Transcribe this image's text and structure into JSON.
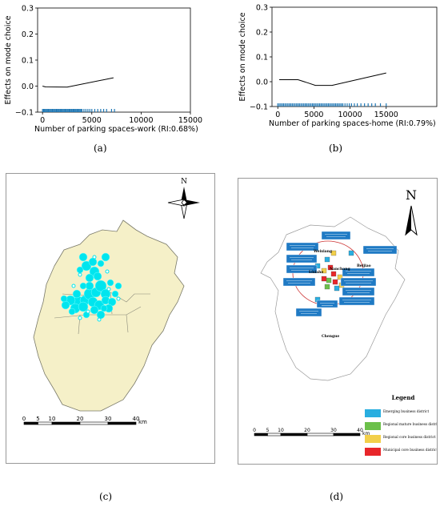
{
  "captions": [
    "(a)",
    "(b)",
    "(c)",
    "(d)"
  ],
  "chart_data": [
    {
      "type": "line",
      "panel": "a",
      "ylabel": "Effects on mode choice",
      "xlabel": "Number of parking spaces-work (RI:0.68%)",
      "xlim": [
        -500,
        15000
      ],
      "ylim": [
        -0.1,
        0.3
      ],
      "xticks": [
        0,
        5000,
        10000,
        15000
      ],
      "yticks": [
        -0.1,
        0.0,
        0.1,
        0.2,
        0.3
      ],
      "xtick_labels": [
        "0",
        "5000",
        "10000",
        "15000"
      ],
      "ytick_labels": [
        "−0.1",
        "0.0",
        "0.1",
        "0.2",
        "0.3"
      ],
      "line": {
        "x": [
          0,
          300,
          2500,
          7200
        ],
        "y": [
          0.0,
          -0.003,
          -0.004,
          0.032
        ]
      },
      "rug": [
        0,
        100,
        200,
        300,
        400,
        500,
        600,
        700,
        800,
        900,
        1000,
        1100,
        1200,
        1300,
        1400,
        1500,
        1600,
        1700,
        1800,
        1900,
        2000,
        2100,
        2200,
        2300,
        2400,
        2500,
        2600,
        2700,
        2800,
        2900,
        3000,
        3100,
        3200,
        3300,
        3400,
        3500,
        3600,
        3700,
        3800,
        3900,
        4000,
        4200,
        4400,
        4600,
        4800,
        5000,
        5300,
        5600,
        5900,
        6200,
        6500,
        7000,
        7300
      ],
      "line_color": "#000000",
      "rug_color": "#1f77b4"
    },
    {
      "type": "line",
      "panel": "b",
      "ylabel": "Effects on mode choice",
      "xlabel": "Number of parking spaces-home (RI:0.79%)",
      "xlim": [
        -800,
        22000
      ],
      "ylim": [
        -0.1,
        0.3
      ],
      "xticks": [
        0,
        5000,
        10000,
        15000
      ],
      "yticks": [
        -0.1,
        0.0,
        0.1,
        0.2,
        0.3
      ],
      "xtick_labels": [
        "0",
        "5000",
        "10000",
        "15000"
      ],
      "ytick_labels": [
        "−0.1",
        "0.0",
        "0.1",
        "0.2",
        "0.3"
      ],
      "line": {
        "x": [
          200,
          2800,
          4200,
          5200,
          7500,
          15000
        ],
        "y": [
          0.008,
          0.008,
          -0.005,
          -0.015,
          -0.015,
          0.035
        ]
      },
      "rug": [
        0,
        200,
        400,
        600,
        800,
        1000,
        1200,
        1400,
        1600,
        1800,
        2000,
        2200,
        2400,
        2600,
        2800,
        3000,
        3200,
        3400,
        3600,
        3800,
        4000,
        4200,
        4400,
        4600,
        4800,
        5000,
        5200,
        5400,
        5600,
        5800,
        6000,
        6200,
        6400,
        6600,
        6800,
        7000,
        7200,
        7400,
        7600,
        7800,
        8000,
        8200,
        8400,
        8600,
        8800,
        9000,
        9300,
        9600,
        9900,
        10200,
        10600,
        11000,
        11500,
        12000,
        12500,
        13000,
        13500,
        14200,
        15000
      ],
      "line_color": "#000000",
      "rug_color": "#1f77b4"
    }
  ],
  "map_c": {
    "north_label": "N",
    "scale_labels": [
      "0",
      "5",
      "10",
      "20",
      "30",
      "40"
    ],
    "scale_unit": "km",
    "land_color": "#f5f0c8",
    "point_color": "#00e5ee"
  },
  "map_d": {
    "north_label": "N",
    "scale_labels": [
      "0",
      "5",
      "10",
      "20",
      "30",
      "40"
    ],
    "scale_unit": "km",
    "place_labels": [
      "Weixiang",
      "Beijiao",
      "Lixiahe",
      "Nanchang",
      "Chengue"
    ],
    "legend": {
      "title": "Legend",
      "items": [
        {
          "label": "Emerging business district",
          "color": "#29aee0"
        },
        {
          "label": "Regional mature business district",
          "color": "#6cc04a"
        },
        {
          "label": "Regional core business district",
          "color": "#f2cf4a"
        },
        {
          "label": "Municipal core business district",
          "color": "#e8262a"
        }
      ]
    },
    "label_box_color": "#1f7ac4"
  }
}
